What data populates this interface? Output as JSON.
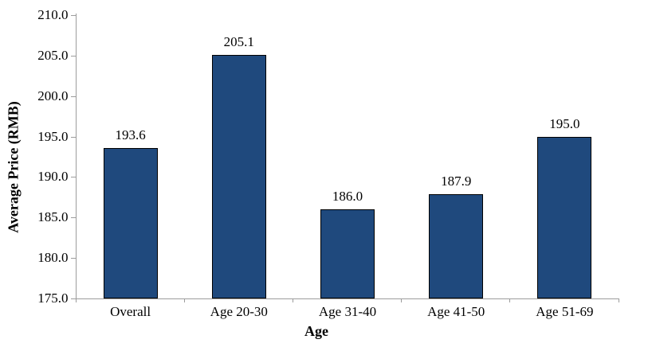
{
  "chart_data": {
    "type": "bar",
    "title": "",
    "xlabel": "Age",
    "ylabel": "Average Price (RMB)",
    "categories": [
      "Overall",
      "Age 20-30",
      "Age 31-40",
      "Age 41-50",
      "Age 51-69"
    ],
    "values": [
      193.6,
      205.1,
      186.0,
      187.9,
      195.0
    ],
    "data_labels": [
      "193.6",
      "205.1",
      "186.0",
      "187.9",
      "195.0"
    ],
    "ylim": [
      175.0,
      210.0
    ],
    "ytick_step": 5.0,
    "ytick_labels": [
      "210.0",
      "205.0",
      "200.0",
      "195.0",
      "190.0",
      "185.0",
      "180.0",
      "175.0"
    ],
    "grid": false,
    "legend": "none",
    "colors": {
      "bar_fill": "#1F497D",
      "bar_border": "#000000",
      "axis": "#9c9c9c",
      "text": "#000000",
      "background": "#ffffff"
    }
  }
}
